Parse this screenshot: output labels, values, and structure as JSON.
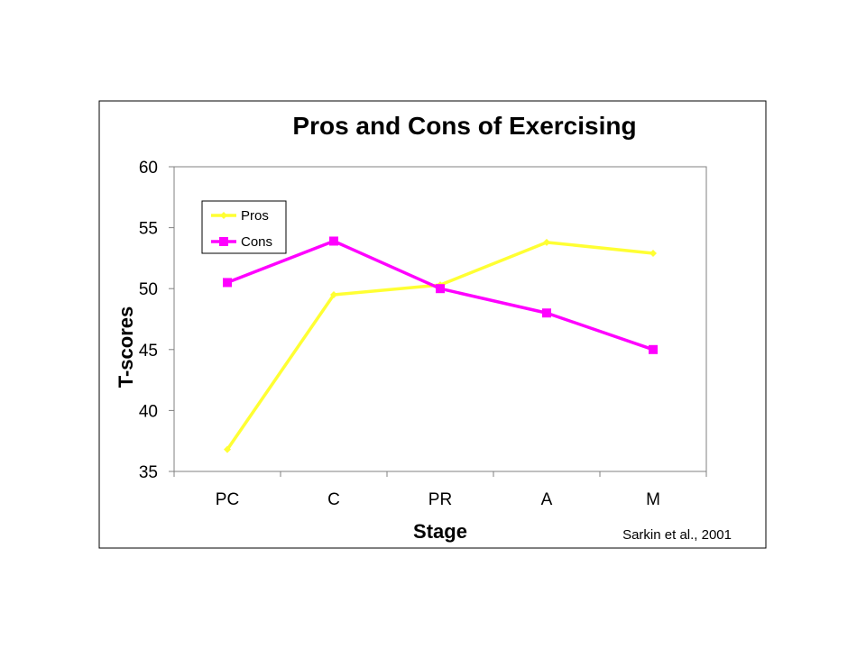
{
  "chart_data": {
    "type": "line",
    "title": "Pros and Cons of Exercising",
    "xlabel": "Stage",
    "ylabel": "T-scores",
    "categories": [
      "PC",
      "C",
      "PR",
      "A",
      "M"
    ],
    "ylim": [
      35,
      60
    ],
    "yticks": [
      35,
      40,
      45,
      50,
      55,
      60
    ],
    "grid": false,
    "legend_position": "top-left",
    "series": [
      {
        "name": "Pros",
        "color": "#ffff33",
        "marker": "diamond",
        "values": [
          36.8,
          49.5,
          50.3,
          53.8,
          52.9
        ]
      },
      {
        "name": "Cons",
        "color": "#ff00ff",
        "marker": "square",
        "values": [
          50.5,
          53.9,
          50.0,
          48.0,
          45.0
        ]
      }
    ],
    "annotation": "Sarkin et al., 2001"
  }
}
